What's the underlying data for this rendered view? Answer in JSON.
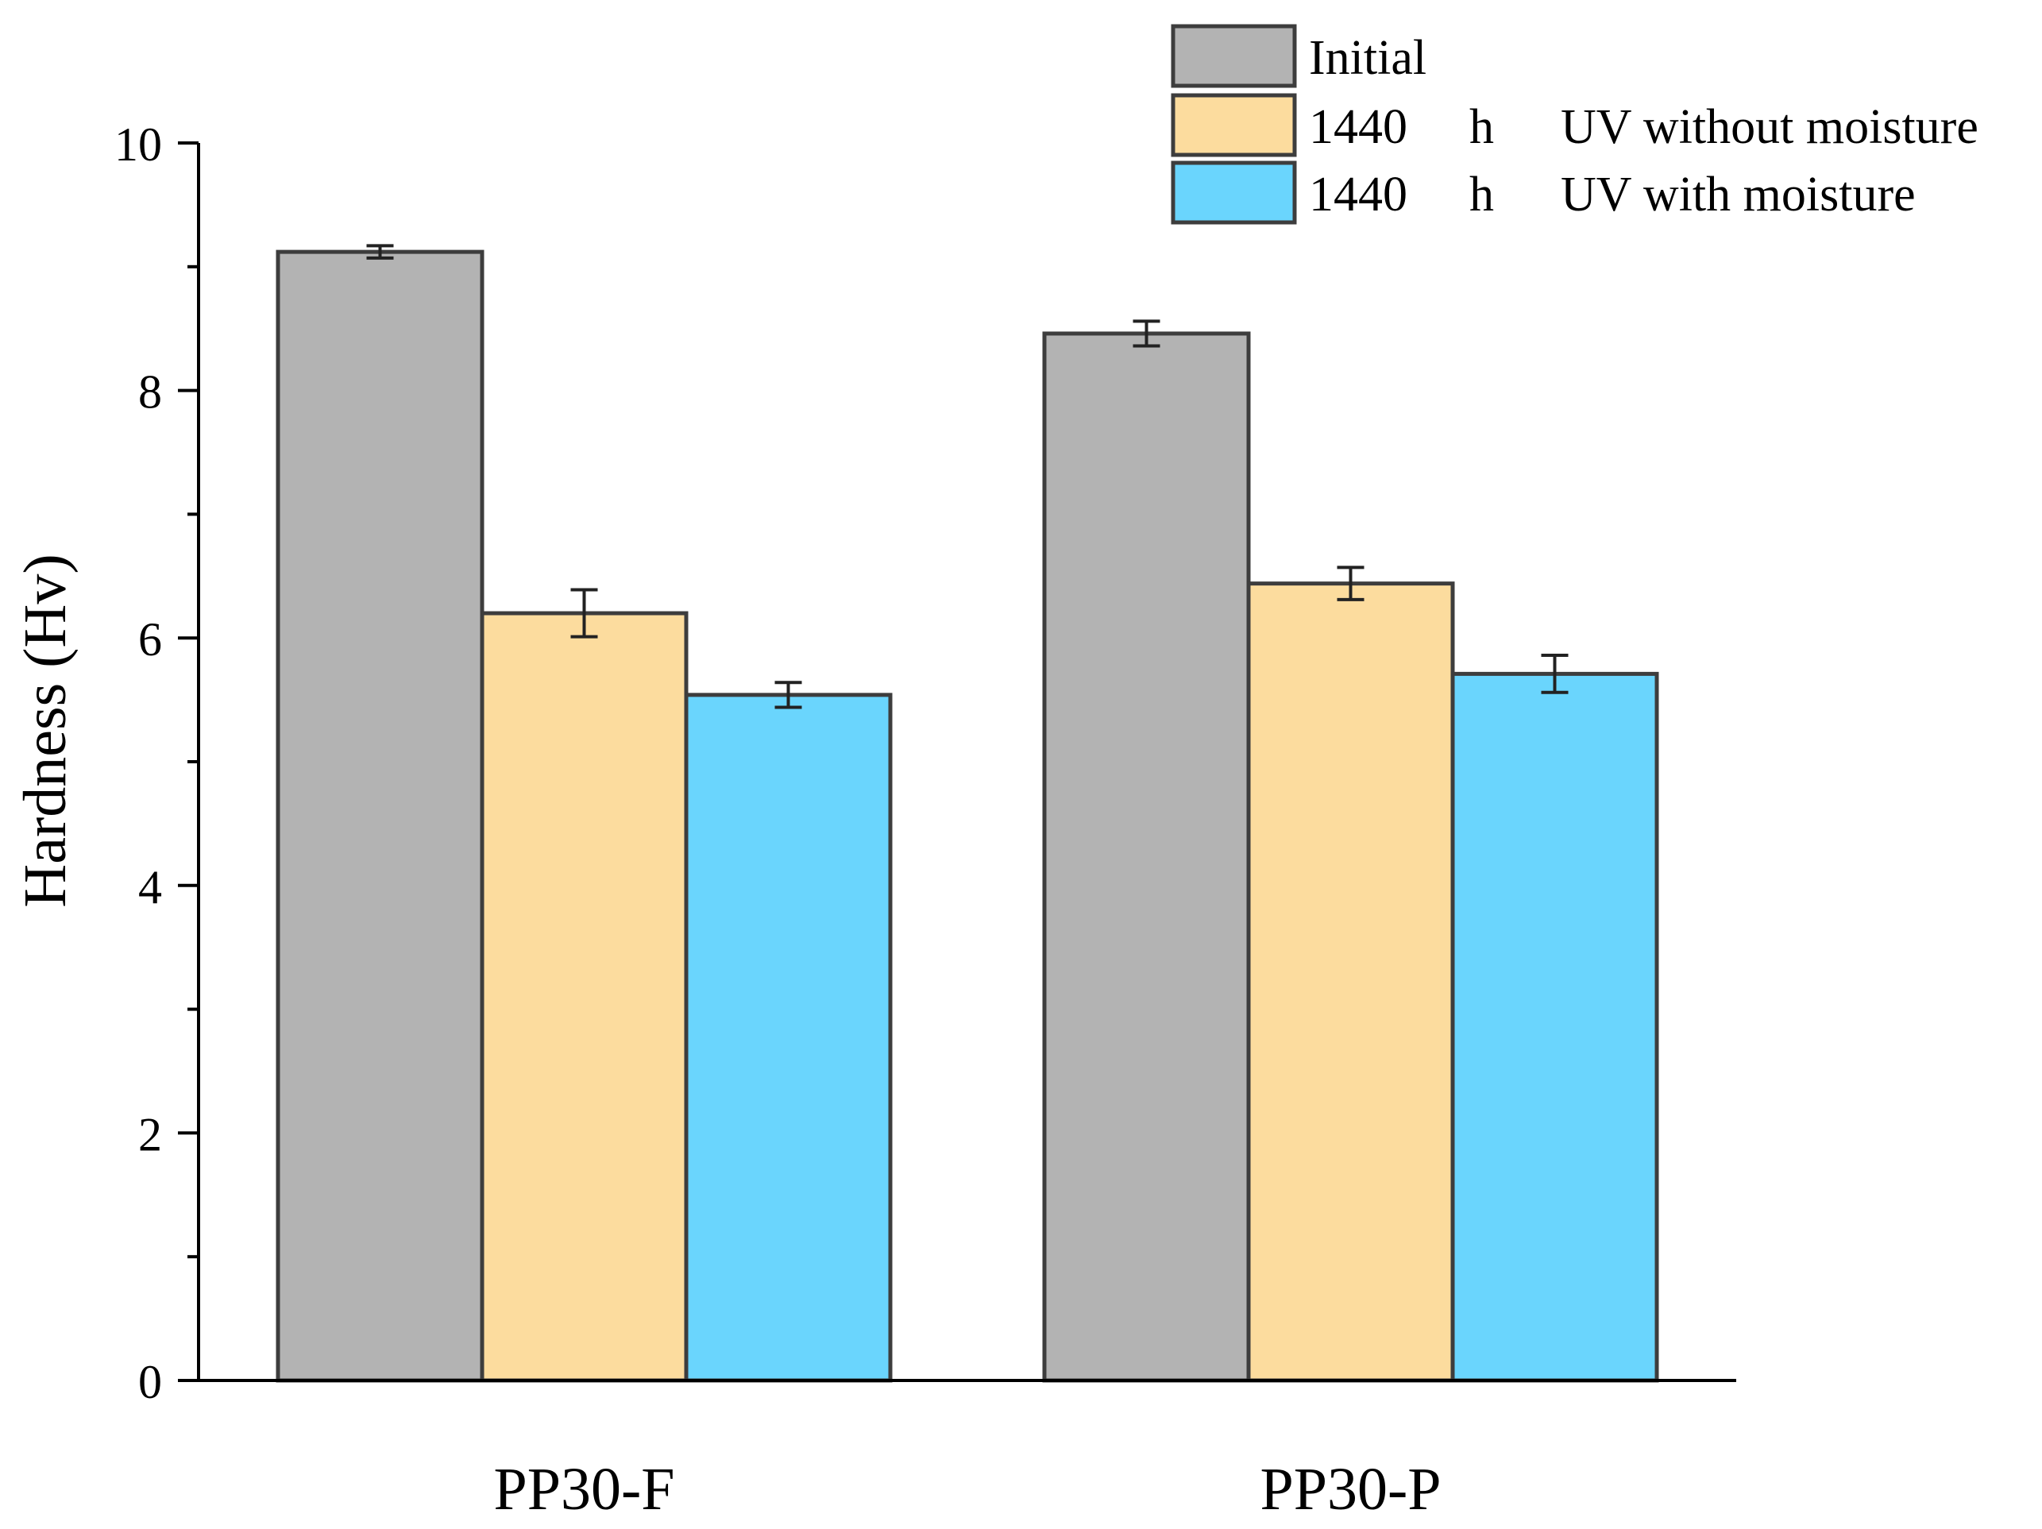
{
  "chart_data": {
    "type": "bar",
    "title": "",
    "xlabel": "",
    "ylabel": "Hardness (Hv)",
    "ylim": [
      0,
      10
    ],
    "yticks": [
      "0",
      "2",
      "4",
      "6",
      "8",
      "10"
    ],
    "grid": false,
    "legend_position": "top-right",
    "categories": [
      "PP30-F",
      "PP30-P"
    ],
    "series": [
      {
        "name": "Initial",
        "legend_parts": [
          "Initial"
        ],
        "color": "#b3b3b3",
        "values": [
          9.12,
          8.46
        ],
        "errors": [
          0.05,
          0.1
        ]
      },
      {
        "name": "1440 h UV without moisture",
        "legend_parts": [
          "1440",
          "h",
          "UV without moisture"
        ],
        "color": "#fcdc9e",
        "values": [
          6.2,
          6.44
        ],
        "errors": [
          0.19,
          0.13
        ]
      },
      {
        "name": "1440 h UV with moisture",
        "legend_parts": [
          "1440",
          "h",
          "UV with moisture"
        ],
        "color": "#6ad5fd",
        "values": [
          5.54,
          5.71
        ],
        "errors": [
          0.1,
          0.15
        ]
      }
    ],
    "bar_edge_color": "#3d3d3d"
  }
}
